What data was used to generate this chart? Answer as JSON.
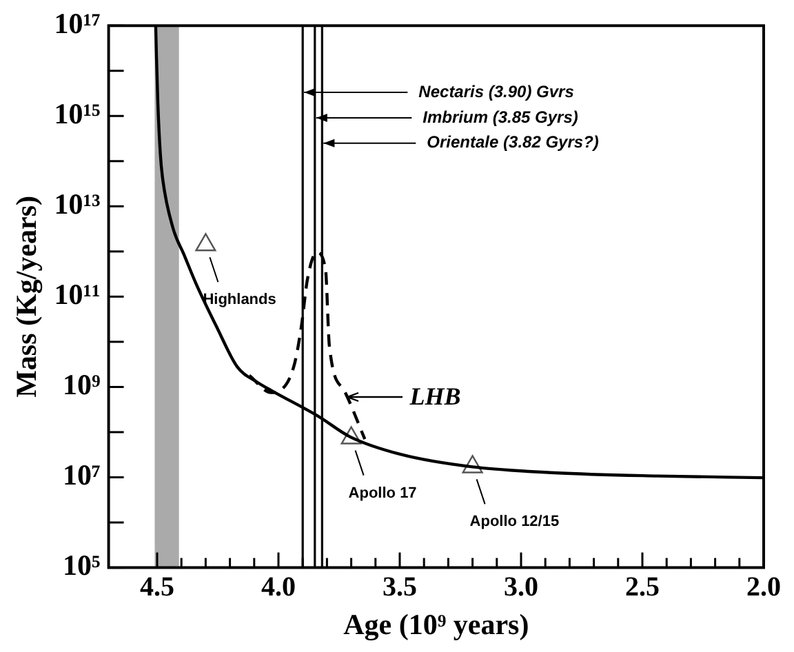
{
  "chart_data": {
    "type": "line",
    "xlabel": "Age (10⁹ years)",
    "ylabel": "Mass (Kg/years)",
    "xlim": [
      4.7,
      2.0
    ],
    "xticks": [
      {
        "value": 4.5,
        "label": "4.5"
      },
      {
        "value": 4.4,
        "label": null
      },
      {
        "value": 4.3,
        "label": null
      },
      {
        "value": 4.2,
        "label": null
      },
      {
        "value": 4.1,
        "label": null
      },
      {
        "value": 4.0,
        "label": "4.0"
      },
      {
        "value": 3.9,
        "label": null
      },
      {
        "value": 3.8,
        "label": null
      },
      {
        "value": 3.7,
        "label": null
      },
      {
        "value": 3.6,
        "label": null
      },
      {
        "value": 3.5,
        "label": "3.5"
      },
      {
        "value": 3.4,
        "label": null
      },
      {
        "value": 3.3,
        "label": null
      },
      {
        "value": 3.2,
        "label": null
      },
      {
        "value": 3.1,
        "label": null
      },
      {
        "value": 3.0,
        "label": "3.0"
      },
      {
        "value": 2.9,
        "label": null
      },
      {
        "value": 2.8,
        "label": null
      },
      {
        "value": 2.7,
        "label": null
      },
      {
        "value": 2.6,
        "label": null
      },
      {
        "value": 2.5,
        "label": "2.5"
      },
      {
        "value": 2.4,
        "label": null
      },
      {
        "value": 2.3,
        "label": null
      },
      {
        "value": 2.2,
        "label": null
      },
      {
        "value": 2.1,
        "label": null
      },
      {
        "value": 2.0,
        "label": "2.0"
      }
    ],
    "ylim": [
      100000.0,
      1e+17
    ],
    "log": "y",
    "yticks": [
      {
        "value": 100000.0,
        "label": "10⁵"
      },
      {
        "value": 1000000.0,
        "label": null
      },
      {
        "value": 10000000.0,
        "label": "10⁷"
      },
      {
        "value": 100000000.0,
        "label": null
      },
      {
        "value": 1000000000.0,
        "label": "10⁹"
      },
      {
        "value": 10000000000.0,
        "label": null
      },
      {
        "value": 100000000000.0,
        "label": "10¹¹"
      },
      {
        "value": 1000000000000.0,
        "label": null
      },
      {
        "value": 10000000000000.0,
        "label": "10¹³"
      },
      {
        "value": 100000000000000.0,
        "label": null
      },
      {
        "value": 1000000000000000.0,
        "label": "10¹⁵"
      },
      {
        "value": 1e+16,
        "label": null
      },
      {
        "value": 1e+17,
        "label": "10¹⁷"
      }
    ],
    "grid": false,
    "legend": false,
    "series": [
      {
        "color": "#000000",
        "line_style": "solid",
        "marker": "none",
        "x": [
          4.506,
          4.503,
          4.497,
          4.487,
          4.477,
          4.434,
          4.39,
          4.339,
          4.25,
          4.17,
          4.09,
          4.023,
          3.833,
          3.707,
          3.494,
          3.2,
          2.862,
          2.437,
          2.005
        ],
        "values": [
          1e+17,
          2.3e+16,
          1900000000000000.0,
          150000000000000.0,
          40000000000000.0,
          3200000000000.0,
          870000000000.0,
          190000000000.0,
          19000000000.0,
          2800000000.0,
          1300000000.0,
          800000000.0,
          220000000.0,
          80000000.0,
          32000000.0,
          17000000.0,
          12600000.0,
          10700000.0,
          9800000.0
        ]
      },
      {
        "color": "#000000",
        "line_style": "dashed",
        "marker": "none",
        "x": [
          4.12,
          4.03,
          4.0,
          3.937,
          3.906,
          3.88,
          3.842,
          3.806,
          3.79,
          3.727,
          3.644
        ],
        "values": [
          1800000000.0,
          750000000.0,
          800000000.0,
          2800000000.0,
          21000000000.0,
          250000000000.0,
          950000000000.0,
          400000000000.0,
          8000000000.0,
          800000000.0,
          70000000.0
        ]
      },
      {
        "type": "scatter",
        "color": "#555555",
        "marker": "triangle",
        "x": [
          4.3,
          3.7,
          3.2
        ],
        "values": [
          1400000000000.0,
          74000000.0,
          17000000.0
        ]
      }
    ],
    "bands": [
      {
        "axis": "x",
        "from": 4.51,
        "to": 4.41,
        "color": "#aaaaaa"
      }
    ],
    "ref_lines": [
      {
        "axis": "x",
        "value": 3.9,
        "label": "Nectaris (3.90) Gvrs"
      },
      {
        "axis": "x",
        "value": 3.85,
        "label": "Imbrium (3.85 Gyrs)"
      },
      {
        "axis": "x",
        "value": 3.82,
        "label": "Orientale (3.82 Gyrs?)"
      }
    ],
    "annotations": [
      "Highlands",
      "Apollo 17",
      "Apollo 12/15",
      {
        "text": "LHB",
        "x": 3.72,
        "y": 600000000.0
      }
    ]
  }
}
